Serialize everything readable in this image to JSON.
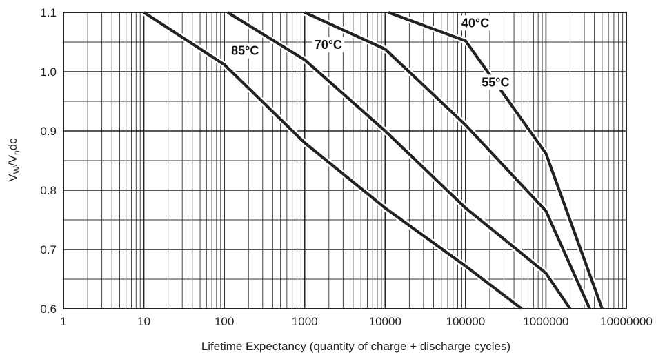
{
  "chart_data": {
    "type": "line",
    "xscale": "log",
    "xlim": [
      1,
      10000000
    ],
    "ylim": [
      0.6,
      1.1
    ],
    "grid": true,
    "xlabel": "Lifetime Expectancy (quantity of charge + discharge cycles)",
    "ylabel_main": "V",
    "ylabel_sub1": "W",
    "ylabel_mid": "/V",
    "ylabel_sub2": "n",
    "ylabel_end": "dc",
    "xticks": [
      {
        "value": 1,
        "label": "1"
      },
      {
        "value": 10,
        "label": "10"
      },
      {
        "value": 100,
        "label": "100"
      },
      {
        "value": 1000,
        "label": "1000"
      },
      {
        "value": 10000,
        "label": "10000"
      },
      {
        "value": 100000,
        "label": "100000"
      },
      {
        "value": 1000000,
        "label": "1000000"
      },
      {
        "value": 10000000,
        "label": "10000000"
      }
    ],
    "yticks": [
      {
        "value": 0.6,
        "label": "0.6"
      },
      {
        "value": 0.7,
        "label": "0.7"
      },
      {
        "value": 0.8,
        "label": "0.8"
      },
      {
        "value": 0.9,
        "label": "0.9"
      },
      {
        "value": 1.0,
        "label": "1.0"
      },
      {
        "value": 1.1,
        "label": "1.1"
      }
    ],
    "series": [
      {
        "name": "85°C",
        "points": [
          [
            10,
            1.1
          ],
          [
            100,
            1.012
          ],
          [
            1000,
            0.88
          ],
          [
            10000,
            0.77
          ],
          [
            100000,
            0.672
          ],
          [
            500000,
            0.6
          ]
        ]
      },
      {
        "name": "70°C",
        "points": [
          [
            110,
            1.1
          ],
          [
            1000,
            1.02
          ],
          [
            10000,
            0.9
          ],
          [
            100000,
            0.77
          ],
          [
            1000000,
            0.66
          ],
          [
            2000000,
            0.6
          ]
        ]
      },
      {
        "name": "55°C",
        "points": [
          [
            1000,
            1.1
          ],
          [
            10000,
            1.038
          ],
          [
            100000,
            0.91
          ],
          [
            1000000,
            0.765
          ],
          [
            3500000,
            0.6
          ]
        ]
      },
      {
        "name": "40°C",
        "points": [
          [
            11000,
            1.1
          ],
          [
            100000,
            1.052
          ],
          [
            1000000,
            0.862
          ],
          [
            5000000,
            0.6
          ]
        ]
      }
    ]
  }
}
